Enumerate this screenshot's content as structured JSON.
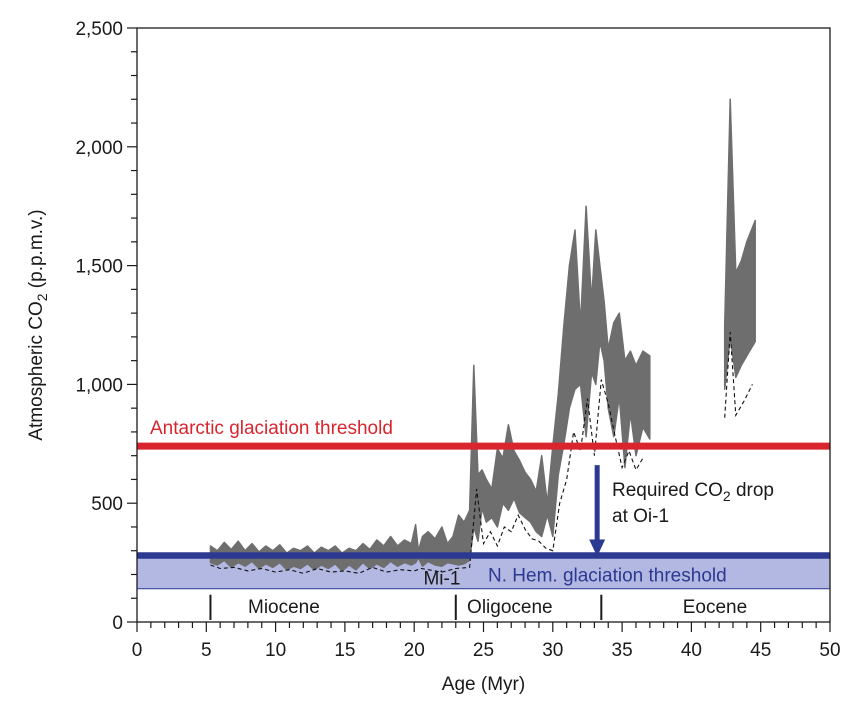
{
  "chart_data": {
    "type": "area",
    "ylabel": "Atmospheric CO",
    "ylabel_sub": "2",
    "ylabel_units": " (p.p.m.v.)",
    "xlabel": "Age (Myr)",
    "xlim": [
      0,
      50
    ],
    "ylim": [
      0,
      2500
    ],
    "xticks": [
      0,
      5,
      10,
      15,
      20,
      25,
      30,
      35,
      40,
      45,
      50
    ],
    "xtick_labels": [
      "0",
      "5",
      "10",
      "15",
      "20",
      "25",
      "30",
      "35",
      "40",
      "45",
      "50"
    ],
    "yticks": [
      0,
      500,
      1000,
      1500,
      2000,
      2500
    ],
    "ytick_labels": [
      "0",
      "500",
      "1,000",
      "1,500",
      "2,000",
      "2,500"
    ],
    "grid": false,
    "colors": {
      "band": "#6e6e6e",
      "dashed": "#111111",
      "antarctic": "#d9262e",
      "nhem_line": "#2b3990",
      "nhem_band": "#b3b8e3",
      "arrow": "#2b3990"
    },
    "co2_band_segments": [
      {
        "x": [
          5.3,
          5.8,
          6.3,
          6.8,
          7.3,
          7.8,
          8.3,
          8.8,
          9.3,
          9.8,
          10.3,
          10.8,
          11.3,
          11.8,
          12.3,
          12.8,
          13.3,
          13.8,
          14.3,
          14.8,
          15.3,
          15.8,
          16.3,
          16.8,
          17.3,
          17.8,
          18.3,
          18.8,
          19.3,
          19.8,
          20.1,
          20.3,
          20.6,
          21.0,
          21.5,
          22.0,
          22.4,
          22.8,
          23.2,
          23.6,
          24.0,
          24.3,
          24.6,
          24.9,
          25.2,
          25.6,
          26.0,
          26.4,
          26.8,
          27.2,
          27.6,
          28.0,
          28.4,
          28.8,
          29.2,
          29.6,
          30.0,
          30.4,
          30.8,
          31.2,
          31.6,
          32.0,
          32.4,
          32.8,
          33.1,
          33.4,
          33.7,
          34.0,
          34.4,
          34.8,
          35.2,
          35.6,
          36.0,
          36.5,
          37.0
        ],
        "lower": [
          250,
          240,
          260,
          230,
          250,
          235,
          255,
          225,
          245,
          230,
          250,
          220,
          235,
          225,
          245,
          220,
          240,
          225,
          245,
          215,
          240,
          220,
          250,
          225,
          245,
          230,
          255,
          235,
          250,
          240,
          250,
          270,
          235,
          255,
          240,
          235,
          250,
          245,
          240,
          245,
          260,
          400,
          340,
          480,
          420,
          440,
          400,
          500,
          470,
          520,
          460,
          440,
          420,
          380,
          360,
          450,
          360,
          620,
          750,
          900,
          980,
          1000,
          780,
          1050,
          1000,
          1180,
          1100,
          900,
          780,
          950,
          650,
          880,
          700,
          820,
          770
        ],
        "upper": [
          320,
          300,
          335,
          305,
          340,
          300,
          330,
          295,
          320,
          300,
          325,
          290,
          310,
          300,
          320,
          290,
          315,
          300,
          320,
          290,
          310,
          300,
          330,
          305,
          345,
          320,
          360,
          320,
          345,
          330,
          410,
          300,
          360,
          380,
          350,
          400,
          330,
          360,
          450,
          420,
          470,
          1080,
          620,
          640,
          600,
          560,
          730,
          690,
          830,
          720,
          680,
          630,
          600,
          550,
          700,
          500,
          740,
          960,
          1250,
          1500,
          1650,
          1250,
          1750,
          1350,
          1650,
          1500,
          1350,
          1150,
          1260,
          1300,
          1100,
          1140,
          1080,
          1140,
          1120
        ]
      },
      {
        "x": [
          42.4,
          42.8,
          43.2,
          43.6,
          44.0,
          44.4,
          44.6
        ],
        "lower": [
          980,
          1200,
          1030,
          1080,
          1120,
          1160,
          1180
        ],
        "upper": [
          1250,
          2200,
          1470,
          1520,
          1600,
          1660,
          1690
        ]
      }
    ],
    "dashed_lower_bounds": [
      {
        "x": [
          5.3,
          6.0,
          7.0,
          8.0,
          9.0,
          10.0,
          11.0,
          12.0,
          13.0,
          14.0,
          15.0,
          16.0,
          17.0,
          18.0,
          19.0,
          20.0,
          20.5,
          21.0,
          22.0,
          23.0,
          24.0,
          24.5,
          25.0,
          25.5,
          26.0,
          26.5,
          27.0,
          27.5,
          28.0,
          28.5,
          29.0,
          29.5,
          30.0,
          30.5,
          31.0,
          31.5,
          32.0,
          32.5,
          33.0,
          33.5,
          34.0,
          34.5,
          35.0,
          35.5,
          36.0,
          36.5
        ],
        "y": [
          240,
          225,
          230,
          215,
          225,
          210,
          220,
          205,
          225,
          210,
          215,
          205,
          230,
          210,
          220,
          215,
          225,
          220,
          210,
          225,
          230,
          560,
          330,
          380,
          320,
          400,
          380,
          450,
          390,
          350,
          340,
          310,
          300,
          500,
          600,
          800,
          720,
          940,
          700,
          1020,
          920,
          780,
          650,
          720,
          640,
          690
        ]
      },
      {
        "x": [
          42.4,
          42.8,
          43.2,
          43.8,
          44.4
        ],
        "y": [
          860,
          1220,
          870,
          930,
          1000
        ]
      }
    ],
    "thresholds": [
      {
        "label": "Antarctic glaciation threshold",
        "value": 740
      },
      {
        "label": "N. Hem. glaciation threshold",
        "value": 280,
        "range": [
          140,
          280
        ]
      }
    ],
    "arrow": {
      "from": 660,
      "to": 280,
      "x": 33.2,
      "label_line1_main": "Required CO",
      "label_line1_sub": "2",
      "label_line1_rest": " drop",
      "label_line2": "at Oi-1"
    },
    "event_label": {
      "text": "Mi-1",
      "x": 22.0
    },
    "epochs": [
      {
        "name": "Miocene",
        "start": 5.3,
        "end": 23.0
      },
      {
        "name": "Oligocene",
        "start": 23.0,
        "end": 33.5
      },
      {
        "name": "Eocene",
        "start": 33.5,
        "end": 50
      }
    ],
    "epoch_boundaries": [
      5.3,
      23.0,
      33.5
    ],
    "epoch_range": [
      0,
      140
    ]
  }
}
